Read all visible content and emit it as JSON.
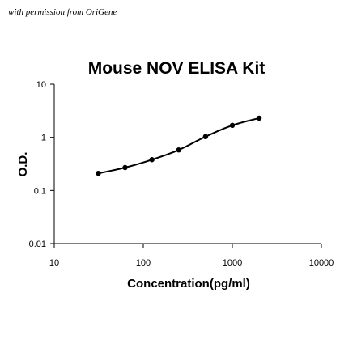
{
  "permission_note": "with permission from OriGene",
  "chart_data": {
    "type": "scatter",
    "title": "Mouse NOV ELISA Kit",
    "xlabel": "Concentration(pg/ml)",
    "ylabel": "O.D.",
    "x_scale": "log",
    "y_scale": "log",
    "xlim": [
      10,
      10000
    ],
    "ylim": [
      0.01,
      10
    ],
    "x_ticks": [
      10,
      100,
      1000,
      10000
    ],
    "y_ticks": [
      0.01,
      0.1,
      1,
      10
    ],
    "x_tick_labels": [
      "10",
      "100",
      "1000",
      "10000"
    ],
    "y_tick_labels": [
      "0.01",
      "0.1",
      "1",
      "10"
    ],
    "grid": false,
    "fit_line": true,
    "series": [
      {
        "x": [
          31.25,
          62.5,
          125,
          250,
          500,
          1000,
          2000
        ],
        "y": [
          0.21,
          0.27,
          0.38,
          0.58,
          1.03,
          1.68,
          2.3
        ]
      }
    ]
  }
}
